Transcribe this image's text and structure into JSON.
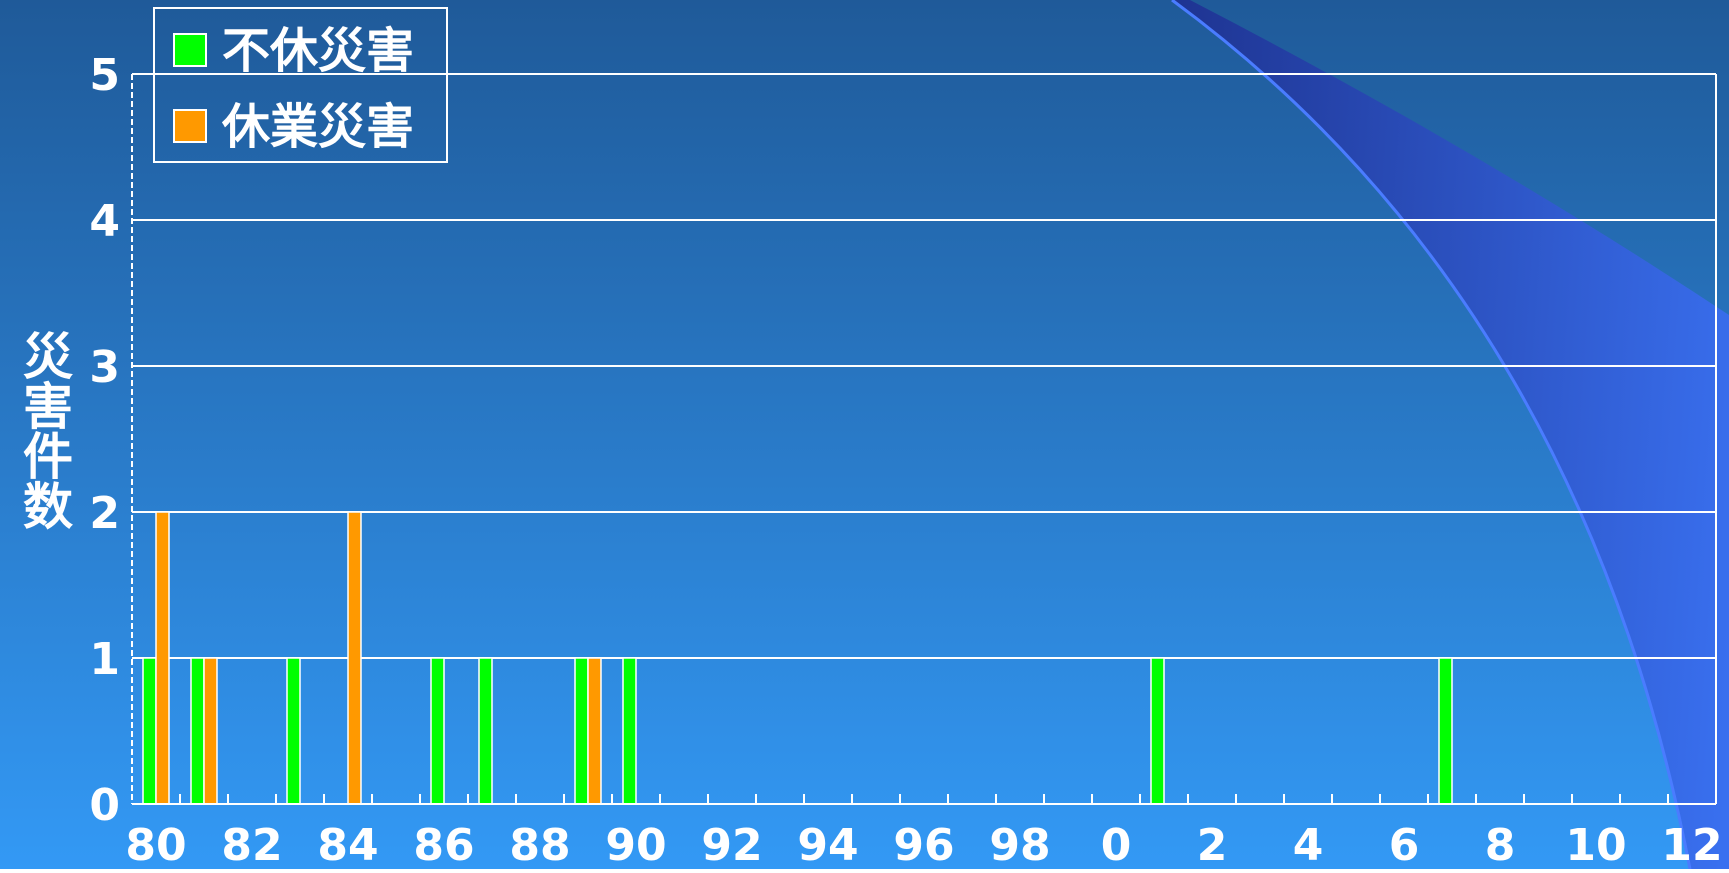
{
  "chart_data": {
    "type": "bar",
    "y_label": "災害件数",
    "categories": [
      "80",
      null,
      "82",
      null,
      "84",
      null,
      "86",
      null,
      "88",
      null,
      "90",
      null,
      "92",
      null,
      "94",
      null,
      "96",
      null,
      "98",
      null,
      "0",
      null,
      "2",
      null,
      "4",
      null,
      "6",
      null,
      "8",
      null,
      "10",
      null,
      "12"
    ],
    "series": [
      {
        "name": "不休災害",
        "color": "#00ff00",
        "values": [
          1,
          1,
          0,
          1,
          0,
          0,
          1,
          1,
          0,
          1,
          1,
          0,
          0,
          0,
          0,
          0,
          0,
          0,
          0,
          0,
          0,
          1,
          0,
          0,
          0,
          0,
          0,
          1,
          0,
          0,
          0,
          0,
          0
        ]
      },
      {
        "name": "休業災害",
        "color": "#ff9900",
        "values": [
          2,
          1,
          0,
          0,
          2,
          0,
          0,
          0,
          0,
          1,
          0,
          0,
          0,
          0,
          0,
          0,
          0,
          0,
          0,
          0,
          0,
          0,
          0,
          0,
          0,
          0,
          0,
          0,
          0,
          0,
          0,
          0,
          0
        ]
      }
    ],
    "ylim": [
      0,
      5
    ],
    "yticks": [
      0,
      1,
      2,
      3,
      4,
      5
    ],
    "grid": true,
    "legend": "upper left"
  }
}
